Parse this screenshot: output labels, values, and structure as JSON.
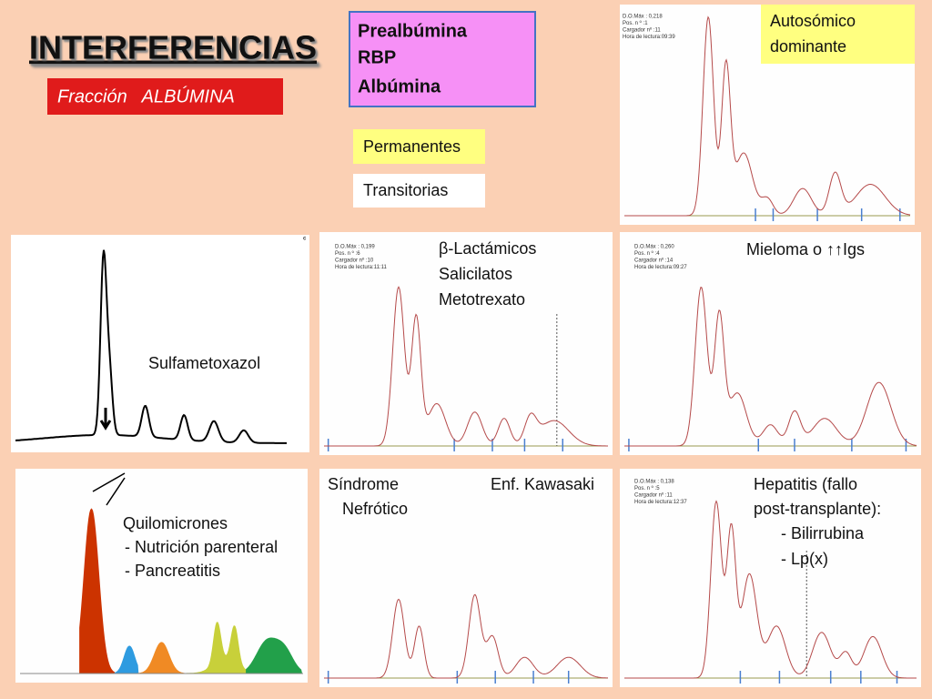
{
  "header": {
    "title": "INTERFERENCIAS",
    "subtitle": "Fracción   ALBÚMINA"
  },
  "proteins": [
    "Prealbúmina",
    "RBP",
    "Albúmina"
  ],
  "legend": {
    "permanent": "Permanentes",
    "transient": "Transitorias"
  },
  "panels": [
    {
      "info": [
        "D.O.Máx : 0,218",
        "Pos. n º :1",
        "Cargador nº :11",
        "Hora de lectura:09:39"
      ],
      "label": [
        "Autosómico",
        "dominante"
      ]
    },
    {
      "info": [
        "c"
      ],
      "label": [
        "Sulfametoxazol"
      ]
    },
    {
      "info": [
        "D.O.Máx : 0,199",
        "Pos. n º :6",
        "Cargador nº :10",
        "Hora de lectura:11:11"
      ],
      "label": [
        "β-Lactámicos",
        "Salicilatos",
        "Metotrexato"
      ]
    },
    {
      "info": [
        "D.O.Máx : 0,260",
        "Pos. n º :4",
        "Cargador nº :14",
        "Hora de lectura:09:27"
      ],
      "label": [
        "Mieloma o ↑↑Igs"
      ]
    },
    {
      "info": [],
      "label": [
        "Quilomicrones",
        "- Nutrición parenteral",
        "- Pancreatitis"
      ]
    },
    {
      "info": [],
      "label": [
        "Síndrome",
        "Nefrótico",
        "Enf. Kawasaki"
      ]
    },
    {
      "info": [
        "D.O.Máx : 0,138",
        "Pos. n º :5",
        "Cargador nº :11",
        "Hora de lectura:12:37"
      ],
      "label": [
        "Hepatitis   (fallo",
        "post-transplante):",
        "- Bilirrubina",
        "- Lp(x)"
      ]
    }
  ]
}
